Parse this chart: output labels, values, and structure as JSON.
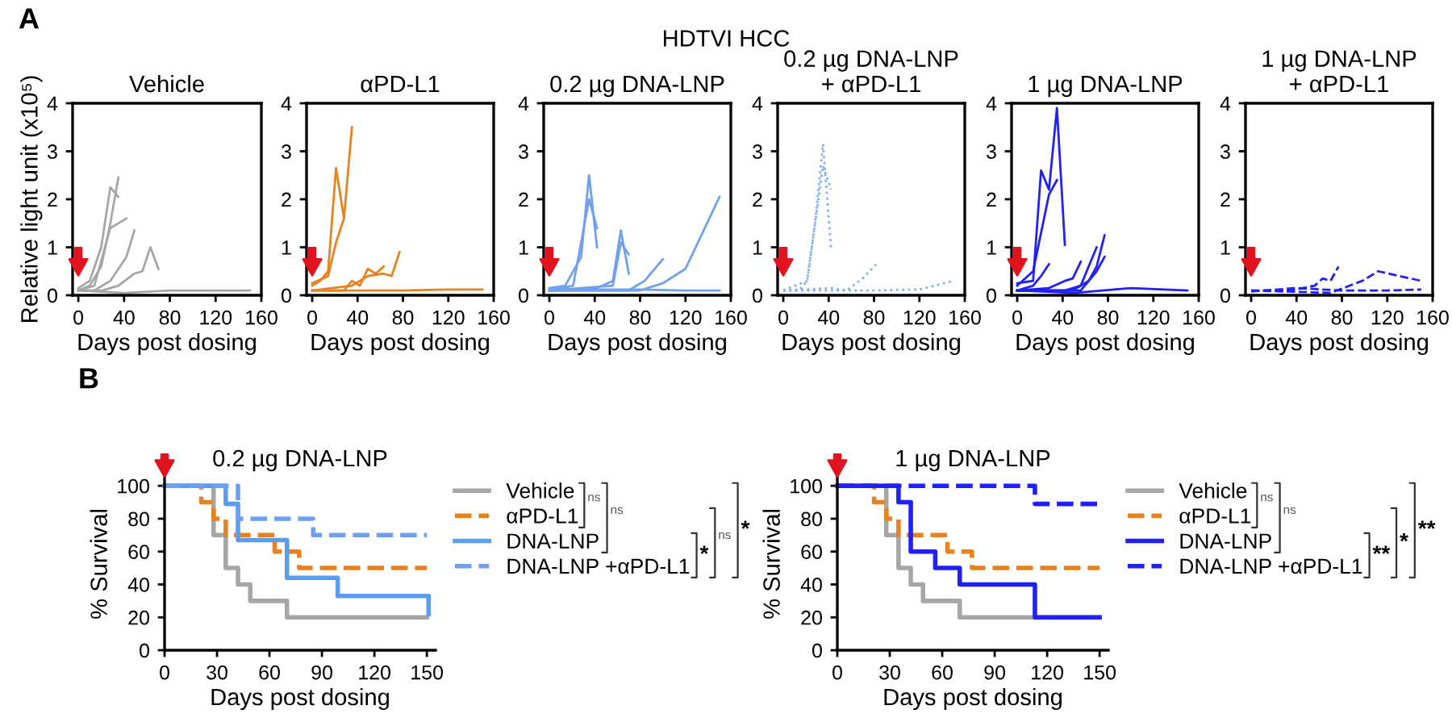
{
  "chart_data": [
    {
      "type": "line",
      "title": "Vehicle",
      "xlabel": "Days post dosing",
      "ylabel": "Relative light unit (x10⁵)",
      "xlim": [
        -5,
        160
      ],
      "xticks": [
        0,
        40,
        80,
        120,
        160
      ],
      "ylim": [
        0,
        4
      ],
      "yticks": [
        0,
        1,
        2,
        3,
        4
      ],
      "annotations": [
        "A",
        "HDTVI HCC"
      ],
      "series": [
        {
          "color": "#a6a6a6",
          "x": [
            0,
            10,
            20,
            28,
            35
          ],
          "values": [
            0.1,
            0.2,
            0.6,
            1.5,
            2.45
          ]
        },
        {
          "color": "#a6a6a6",
          "x": [
            0,
            10,
            20,
            28,
            35
          ],
          "values": [
            0.15,
            0.3,
            1.0,
            2.25,
            2.05
          ]
        },
        {
          "color": "#a6a6a6",
          "x": [
            0,
            14,
            21,
            28,
            42
          ],
          "values": [
            0.1,
            0.2,
            0.8,
            1.4,
            1.6
          ]
        },
        {
          "color": "#a6a6a6",
          "x": [
            0,
            14,
            28,
            42,
            49
          ],
          "values": [
            0.1,
            0.1,
            0.3,
            0.8,
            1.35
          ]
        },
        {
          "color": "#a6a6a6",
          "x": [
            0,
            21,
            35,
            49,
            56,
            63,
            70
          ],
          "values": [
            0.1,
            0.1,
            0.2,
            0.45,
            0.5,
            1.0,
            0.55
          ]
        },
        {
          "color": "#a6a6a6",
          "x": [
            0,
            40,
            80,
            120,
            150
          ],
          "values": [
            0.1,
            0.05,
            0.1,
            0.1,
            0.1
          ]
        }
      ]
    },
    {
      "type": "line",
      "title": "αPD-L1",
      "xlabel": "Days post dosing",
      "xlim": [
        -5,
        160
      ],
      "xticks": [
        0,
        40,
        80,
        120,
        160
      ],
      "ylim": [
        0,
        4
      ],
      "yticks": [
        0,
        1,
        2,
        3,
        4
      ],
      "series": [
        {
          "color": "#e8821e",
          "x": [
            0,
            7,
            14,
            21,
            28,
            35
          ],
          "values": [
            0.2,
            0.3,
            0.5,
            2.65,
            1.6,
            3.5
          ]
        },
        {
          "color": "#e8821e",
          "x": [
            0,
            14,
            21,
            28
          ],
          "values": [
            0.25,
            0.4,
            1.1,
            1.6
          ]
        },
        {
          "color": "#e8821e",
          "x": [
            0,
            28,
            35,
            42,
            49,
            56,
            63
          ],
          "values": [
            0.1,
            0.1,
            0.3,
            0.2,
            0.55,
            0.45,
            0.6
          ]
        },
        {
          "color": "#e8821e",
          "x": [
            0,
            35,
            49,
            63,
            70,
            77
          ],
          "values": [
            0.1,
            0.2,
            0.4,
            0.45,
            0.4,
            0.9
          ]
        },
        {
          "color": "#e8821e",
          "x": [
            0,
            40,
            80,
            120,
            150
          ],
          "values": [
            0.1,
            0.1,
            0.1,
            0.12,
            0.12
          ]
        }
      ]
    },
    {
      "type": "line",
      "title": "0.2 µg DNA-LNP",
      "xlabel": "Days post dosing",
      "xlim": [
        -5,
        160
      ],
      "xticks": [
        0,
        40,
        80,
        120,
        160
      ],
      "ylim": [
        0,
        4
      ],
      "yticks": [
        0,
        1,
        2,
        3,
        4
      ],
      "series": [
        {
          "color": "#6fa0f0",
          "x": [
            0,
            14,
            28,
            35,
            42
          ],
          "values": [
            0.15,
            0.2,
            0.8,
            2.5,
            1.0
          ]
        },
        {
          "color": "#6fa0f0",
          "x": [
            0,
            21,
            35,
            42
          ],
          "values": [
            0.1,
            0.2,
            2.0,
            1.4
          ]
        },
        {
          "color": "#6fa0f0",
          "x": [
            0,
            42,
            56,
            63,
            70
          ],
          "values": [
            0.1,
            0.15,
            0.3,
            1.35,
            0.45
          ]
        },
        {
          "color": "#6fa0f0",
          "x": [
            0,
            56,
            63,
            70
          ],
          "values": [
            0.1,
            0.2,
            1.1,
            0.85
          ]
        },
        {
          "color": "#6fa0f0",
          "x": [
            0,
            70,
            84,
            100
          ],
          "values": [
            0.1,
            0.1,
            0.3,
            0.75
          ]
        },
        {
          "color": "#6fa0f0",
          "x": [
            0,
            80,
            100,
            120,
            150
          ],
          "values": [
            0.1,
            0.1,
            0.25,
            0.55,
            2.05
          ]
        },
        {
          "color": "#6fa0f0",
          "x": [
            0,
            40,
            80,
            120,
            150
          ],
          "values": [
            0.1,
            0.12,
            0.12,
            0.1,
            0.1
          ]
        }
      ]
    },
    {
      "type": "line",
      "title": "0.2 µg DNA-LNP\n+ αPD-L1",
      "xlabel": "Days post dosing",
      "xlim": [
        -5,
        160
      ],
      "xticks": [
        0,
        40,
        80,
        120,
        160
      ],
      "ylim": [
        0,
        4
      ],
      "yticks": [
        0,
        1,
        2,
        3,
        4
      ],
      "line_style": "dotted",
      "series": [
        {
          "color": "#7fb0f5",
          "x": [
            0,
            14,
            21,
            28,
            35,
            42
          ],
          "values": [
            0.1,
            0.1,
            0.3,
            1.5,
            3.15,
            1.0
          ]
        },
        {
          "color": "#7fb0f5",
          "x": [
            0,
            21,
            35,
            42
          ],
          "values": [
            0.1,
            0.3,
            2.7,
            2.2
          ]
        },
        {
          "color": "#7fb0f5",
          "x": [
            0,
            42,
            56,
            70,
            84
          ],
          "values": [
            0.1,
            0.15,
            0.1,
            0.35,
            0.7
          ]
        },
        {
          "color": "#7fb0f5",
          "x": [
            0,
            40,
            80,
            120,
            150
          ],
          "values": [
            0.1,
            0.1,
            0.1,
            0.12,
            0.3
          ]
        }
      ]
    },
    {
      "type": "line",
      "title": "1 µg DNA-LNP",
      "xlabel": "Days post dosing",
      "xlim": [
        -5,
        160
      ],
      "xticks": [
        0,
        40,
        80,
        120,
        160
      ],
      "ylim": [
        0,
        4
      ],
      "yticks": [
        0,
        1,
        2,
        3,
        4
      ],
      "series": [
        {
          "color": "#1f1fff",
          "x": [
            0,
            14,
            21,
            28,
            35,
            42
          ],
          "values": [
            0.25,
            0.3,
            2.6,
            2.2,
            3.9,
            1.05
          ]
        },
        {
          "color": "#1f1fff",
          "x": [
            0,
            14,
            21,
            28,
            35
          ],
          "values": [
            0.2,
            0.5,
            1.3,
            2.1,
            2.4
          ]
        },
        {
          "color": "#1f1fff",
          "x": [
            0,
            14,
            21,
            28
          ],
          "values": [
            0.1,
            0.2,
            0.4,
            0.65
          ]
        },
        {
          "color": "#1f1fff",
          "x": [
            0,
            28,
            42,
            49,
            56
          ],
          "values": [
            0.1,
            0.15,
            0.3,
            0.35,
            0.7
          ]
        },
        {
          "color": "#1f1fff",
          "x": [
            0,
            42,
            56,
            63,
            70
          ],
          "values": [
            0.1,
            0.1,
            0.2,
            0.6,
            1.0
          ]
        },
        {
          "color": "#1f1fff",
          "x": [
            0,
            49,
            63,
            70,
            77
          ],
          "values": [
            0.1,
            0.1,
            0.3,
            0.6,
            1.25
          ]
        },
        {
          "color": "#1f1fff",
          "x": [
            0,
            56,
            70,
            77
          ],
          "values": [
            0.1,
            0.1,
            0.5,
            0.8
          ]
        },
        {
          "color": "#1f1fff",
          "x": [
            0,
            50,
            100,
            150
          ],
          "values": [
            0.1,
            0.05,
            0.15,
            0.1
          ]
        }
      ]
    },
    {
      "type": "line",
      "title": "1 µg DNA-LNP\n+ αPD-L1",
      "xlabel": "Days post dosing",
      "xlim": [
        -5,
        160
      ],
      "xticks": [
        0,
        40,
        80,
        120,
        160
      ],
      "ylim": [
        0,
        4
      ],
      "yticks": [
        0,
        1,
        2,
        3,
        4
      ],
      "line_style": "dashed",
      "series": [
        {
          "color": "#1f1fff",
          "x": [
            0,
            35,
            56,
            63,
            70,
            77
          ],
          "values": [
            0.1,
            0.1,
            0.2,
            0.35,
            0.3,
            0.6
          ]
        },
        {
          "color": "#1f1fff",
          "x": [
            0,
            70,
            98,
            112,
            150
          ],
          "values": [
            0.1,
            0.05,
            0.3,
            0.5,
            0.3
          ]
        },
        {
          "color": "#1f1fff",
          "x": [
            0,
            40,
            80,
            120,
            150
          ],
          "values": [
            0.08,
            0.15,
            0.1,
            0.1,
            0.12
          ]
        }
      ]
    },
    {
      "type": "step",
      "title": "0.2 µg DNA-LNP",
      "xlabel": "Days post dosing",
      "ylabel": "% Survival",
      "xlim": [
        0,
        155
      ],
      "xticks": [
        0,
        30,
        60,
        90,
        120,
        150
      ],
      "ylim": [
        0,
        105
      ],
      "yticks": [
        0,
        20,
        40,
        60,
        80,
        100
      ],
      "legend": "right",
      "annotations": [
        "B",
        "ns",
        "ns",
        "*",
        "ns",
        "*"
      ],
      "series": [
        {
          "name": "Vehicle",
          "color": "#a6a6a6",
          "x": [
            0,
            28,
            35,
            42,
            49,
            70,
            150
          ],
          "values": [
            100,
            70,
            50,
            40,
            30,
            20,
            20
          ]
        },
        {
          "name": "αPD-L1",
          "color": "#e8821e",
          "line_style": "dashed",
          "x": [
            0,
            21,
            28,
            35,
            63,
            77,
            150
          ],
          "values": [
            100,
            90,
            80,
            70,
            60,
            50,
            50
          ]
        },
        {
          "name": "DNA-LNP",
          "color": "#5b9bf0",
          "x": [
            0,
            35,
            42,
            70,
            99,
            151
          ],
          "values": [
            100,
            89,
            67,
            44,
            33,
            22
          ]
        },
        {
          "name": "DNA-LNP +αPD-L1",
          "color": "#6fa0f0",
          "line_style": "dashed",
          "x": [
            0,
            42,
            85,
            150
          ],
          "values": [
            100,
            80,
            70,
            70
          ]
        }
      ]
    },
    {
      "type": "step",
      "title": "1 µg DNA-LNP",
      "xlabel": "Days post dosing",
      "ylabel": "% Survival",
      "xlim": [
        0,
        155
      ],
      "xticks": [
        0,
        30,
        60,
        90,
        120,
        150
      ],
      "ylim": [
        0,
        105
      ],
      "yticks": [
        0,
        20,
        40,
        60,
        80,
        100
      ],
      "legend": "right",
      "annotations": [
        "ns",
        "ns",
        "**",
        "*",
        "**"
      ],
      "series": [
        {
          "name": "Vehicle",
          "color": "#a6a6a6",
          "x": [
            0,
            28,
            35,
            42,
            49,
            70,
            150
          ],
          "values": [
            100,
            70,
            50,
            40,
            30,
            20,
            20
          ]
        },
        {
          "name": "αPD-L1",
          "color": "#e8821e",
          "line_style": "dashed",
          "x": [
            0,
            21,
            28,
            35,
            63,
            77,
            150
          ],
          "values": [
            100,
            90,
            80,
            70,
            60,
            50,
            50
          ]
        },
        {
          "name": "DNA-LNP",
          "color": "#1f1fff",
          "x": [
            0,
            35,
            42,
            56,
            70,
            113,
            150
          ],
          "values": [
            100,
            90,
            60,
            50,
            40,
            20,
            20
          ]
        },
        {
          "name": "DNA-LNP +αPD-L1",
          "color": "#1f1fff",
          "line_style": "dashed",
          "x": [
            0,
            113,
            150
          ],
          "values": [
            100,
            89,
            89
          ]
        }
      ]
    }
  ]
}
